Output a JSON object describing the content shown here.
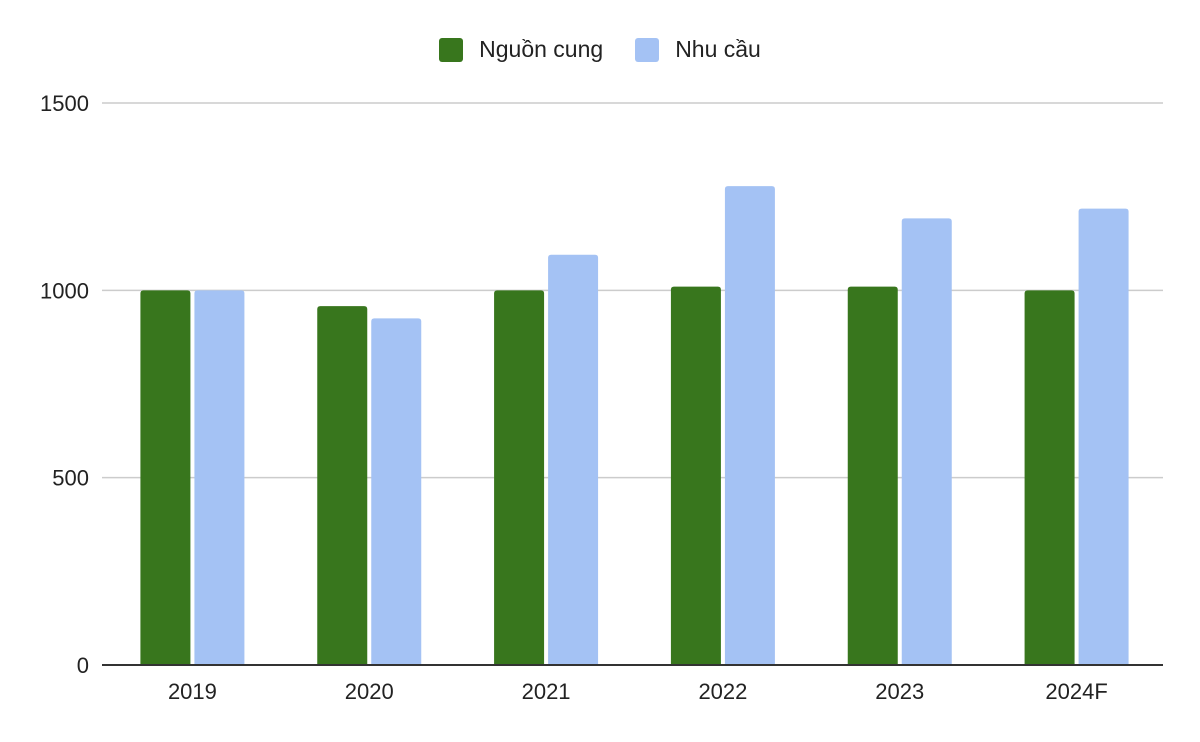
{
  "chart_data": {
    "type": "bar",
    "title": "",
    "xlabel": "",
    "ylabel": "",
    "categories": [
      "2019",
      "2020",
      "2021",
      "2022",
      "2023",
      "2024F"
    ],
    "series": [
      {
        "name": "Nguồn cung",
        "color": "#38761d",
        "values": [
          1000,
          958,
          1000,
          1010,
          1010,
          1000
        ]
      },
      {
        "name": "Nhu cầu",
        "color": "#a4c2f4",
        "values": [
          1000,
          925,
          1095,
          1278,
          1192,
          1218
        ]
      }
    ],
    "ylim": [
      0,
      1500
    ],
    "yticks": [
      0,
      500,
      1000,
      1500
    ],
    "grid": true,
    "legend_position": "top-center"
  }
}
